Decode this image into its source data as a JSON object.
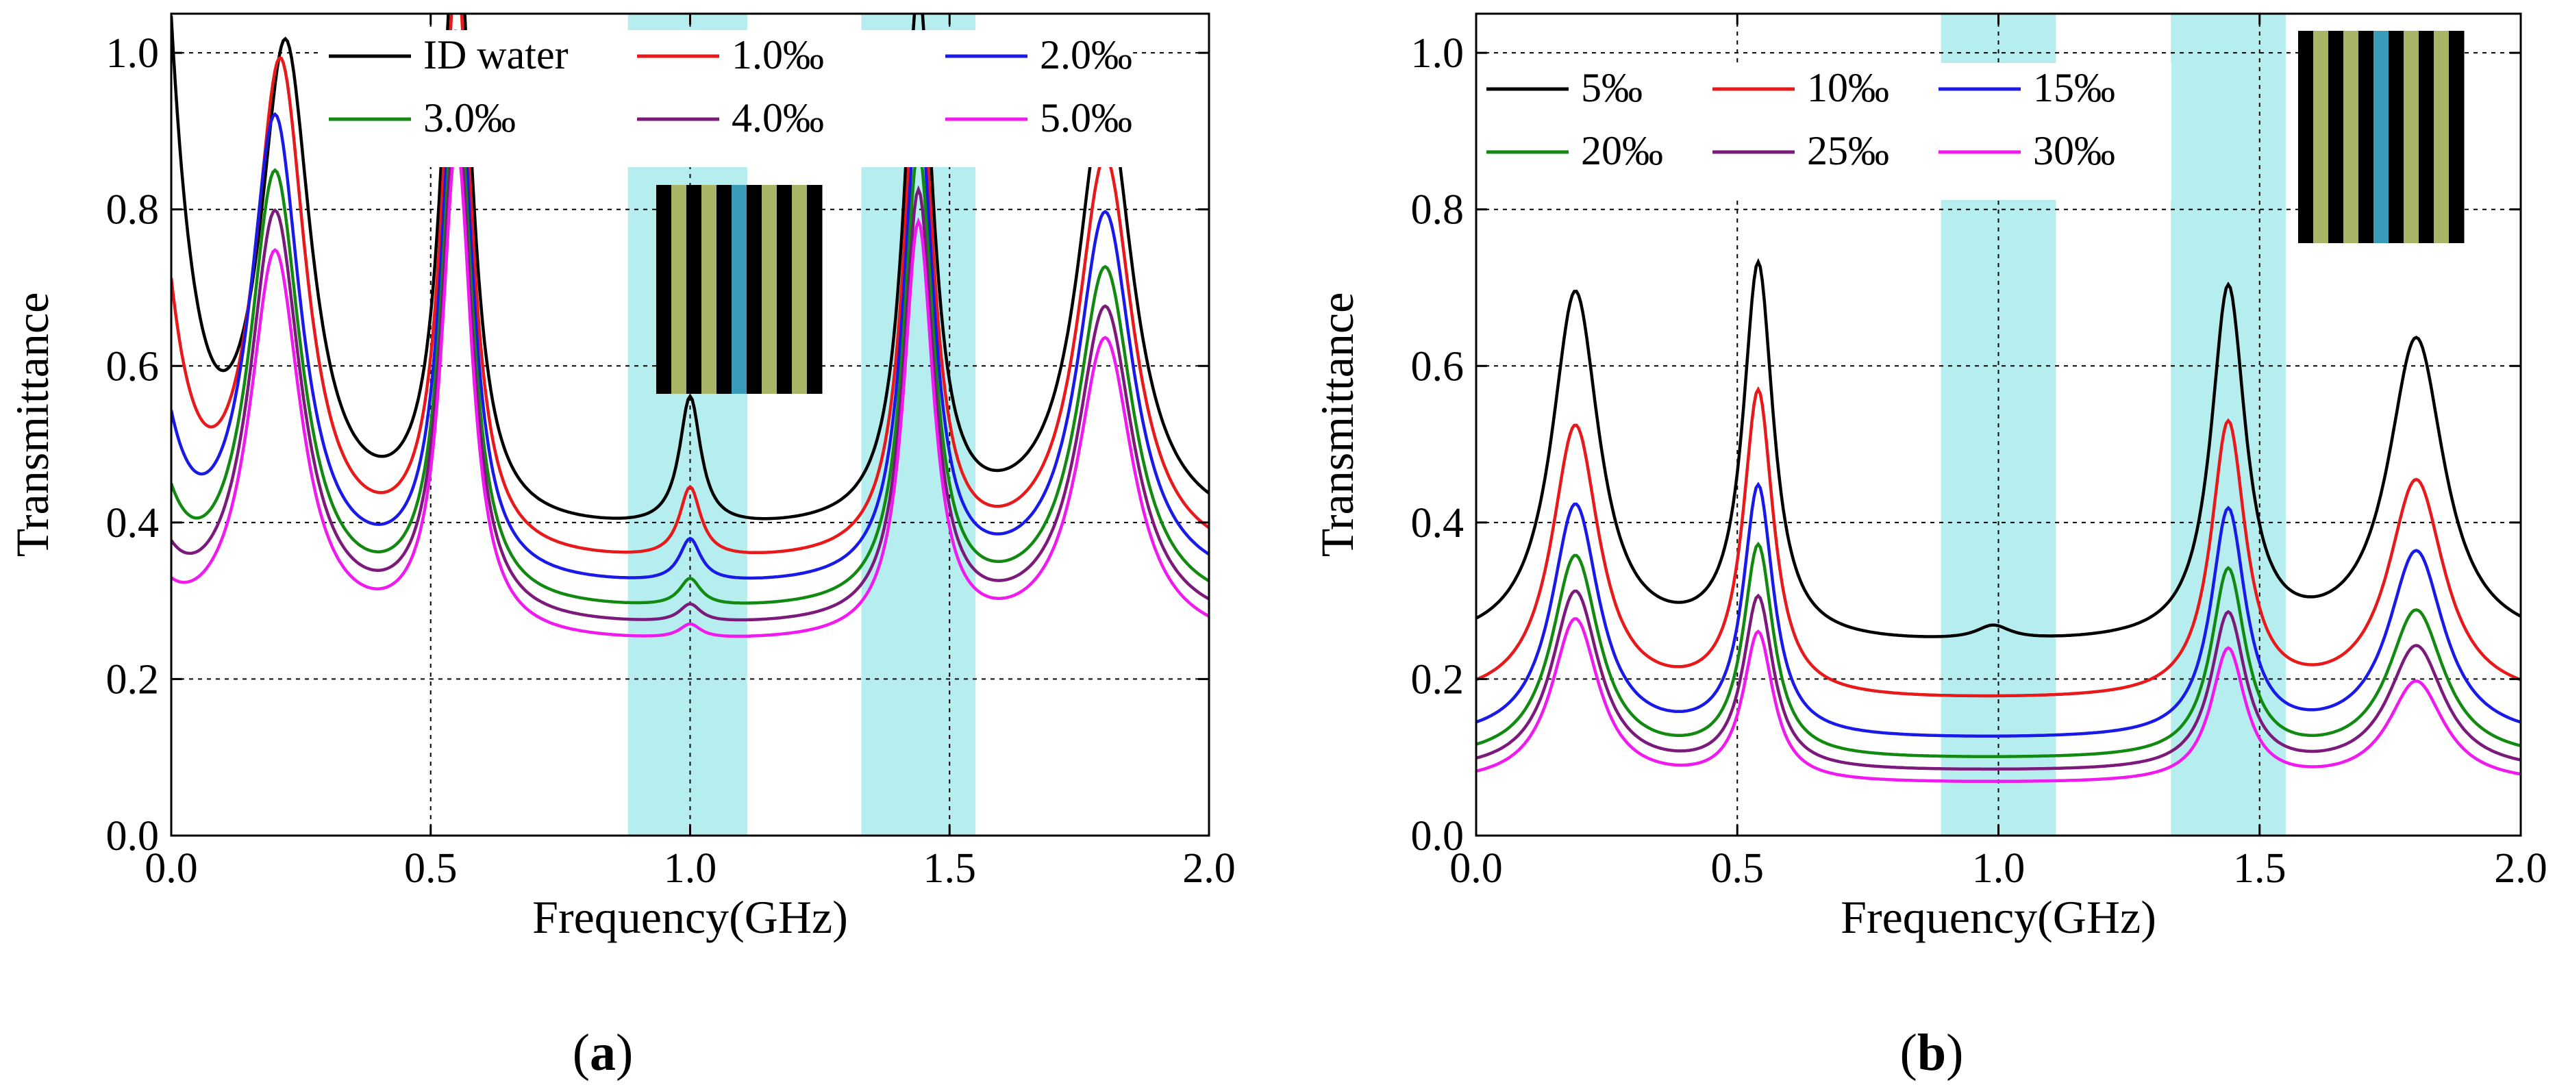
{
  "chart_data": [
    {
      "id": "a",
      "type": "line",
      "panel_label": "a",
      "caption_open": "(",
      "caption_close": ")",
      "xlabel": "Frequency(GHz)",
      "ylabel": "Transmittance",
      "xlim": [
        0,
        2.0
      ],
      "ylim": [
        0,
        1.05
      ],
      "xticks": [
        0.0,
        0.5,
        1.0,
        1.5,
        2.0
      ],
      "xtick_labels": [
        "0.0",
        "0.5",
        "1.0",
        "1.5",
        "2.0"
      ],
      "yticks": [
        0.0,
        0.2,
        0.4,
        0.6,
        0.8,
        1.0
      ],
      "ytick_labels": [
        "0.0",
        "0.2",
        "0.4",
        "0.6",
        "0.8",
        "1.0"
      ],
      "grid": true,
      "legend_position": "top",
      "highlight_bands": [
        [
          0.88,
          1.11
        ],
        [
          1.33,
          1.55
        ]
      ],
      "inset": {
        "position": "upper-middle",
        "stripes": [
          "#000000",
          "#a8b466",
          "#000000",
          "#a8b466",
          "#000000",
          "#3a9bb8",
          "#000000",
          "#a8b466",
          "#000000",
          "#a8b466",
          "#000000"
        ]
      },
      "series": [
        {
          "name": "ID water",
          "color": "#000000",
          "base": 0.38,
          "start": 1.0,
          "start_w": 0.05,
          "peaks": [
            [
              0.22,
              0.62,
              0.06
            ],
            [
              0.55,
              0.78,
              0.035
            ],
            [
              1.0,
              0.165,
              0.025
            ],
            [
              1.44,
              0.68,
              0.035
            ],
            [
              1.8,
              0.56,
              0.065
            ]
          ]
        },
        {
          "name": "1.0‰",
          "color": "#e8191a",
          "base": 0.34,
          "start": 0.66,
          "start_w": 0.05,
          "peaks": [
            [
              0.21,
              0.64,
              0.06
            ],
            [
              0.55,
              0.74,
              0.035
            ],
            [
              1.0,
              0.09,
              0.025
            ],
            [
              1.44,
              0.64,
              0.035
            ],
            [
              1.8,
              0.52,
              0.065
            ]
          ]
        },
        {
          "name": "2.0‰",
          "color": "#1a1ae8",
          "base": 0.31,
          "start": 0.49,
          "start_w": 0.05,
          "peaks": [
            [
              0.2,
              0.6,
              0.06
            ],
            [
              0.55,
              0.7,
              0.035
            ],
            [
              1.0,
              0.055,
              0.025
            ],
            [
              1.44,
              0.61,
              0.035
            ],
            [
              1.8,
              0.48,
              0.065
            ]
          ]
        },
        {
          "name": "3.0‰",
          "color": "#128a12",
          "base": 0.28,
          "start": 0.4,
          "start_w": 0.05,
          "peaks": [
            [
              0.2,
              0.56,
              0.06
            ],
            [
              0.55,
              0.67,
              0.035
            ],
            [
              1.0,
              0.035,
              0.025
            ],
            [
              1.44,
              0.58,
              0.035
            ],
            [
              1.8,
              0.44,
              0.065
            ]
          ]
        },
        {
          "name": "4.0‰",
          "color": "#7b1a7b",
          "base": 0.26,
          "start": 0.33,
          "start_w": 0.05,
          "peaks": [
            [
              0.2,
              0.53,
              0.06
            ],
            [
              0.55,
              0.65,
              0.035
            ],
            [
              1.0,
              0.023,
              0.025
            ],
            [
              1.44,
              0.55,
              0.035
            ],
            [
              1.8,
              0.41,
              0.065
            ]
          ]
        },
        {
          "name": "5.0‰",
          "color": "#f01af0",
          "base": 0.24,
          "start": 0.285,
          "start_w": 0.05,
          "peaks": [
            [
              0.2,
              0.5,
              0.06
            ],
            [
              0.55,
              0.63,
              0.035
            ],
            [
              1.0,
              0.018,
              0.025
            ],
            [
              1.44,
              0.53,
              0.035
            ],
            [
              1.8,
              0.39,
              0.065
            ]
          ]
        }
      ]
    },
    {
      "id": "b",
      "type": "line",
      "panel_label": "b",
      "caption_open": "(",
      "caption_close": ")",
      "xlabel": "Frequency(GHz)",
      "ylabel": "Transmittance",
      "xlim": [
        0,
        2.0
      ],
      "ylim": [
        0,
        1.05
      ],
      "xticks": [
        0.0,
        0.5,
        1.0,
        1.5,
        2.0
      ],
      "xtick_labels": [
        "0.0",
        "0.5",
        "1.0",
        "1.5",
        "2.0"
      ],
      "yticks": [
        0.0,
        0.2,
        0.4,
        0.6,
        0.8,
        1.0
      ],
      "ytick_labels": [
        "0.0",
        "0.2",
        "0.4",
        "0.6",
        "0.8",
        "1.0"
      ],
      "grid": true,
      "legend_position": "top-left",
      "highlight_bands": [
        [
          0.89,
          1.11
        ],
        [
          1.33,
          1.55
        ]
      ],
      "inset": {
        "position": "top-right",
        "stripes": [
          "#000000",
          "#a8b466",
          "#000000",
          "#a8b466",
          "#000000",
          "#3a9bb8",
          "#000000",
          "#a8b466",
          "#000000",
          "#a8b466",
          "#000000"
        ]
      },
      "series": [
        {
          "name": "5‰",
          "color": "#000000",
          "base": 0.24,
          "start": 0.285,
          "start_w": 0.0,
          "peaks": [
            [
              0.19,
              0.45,
              0.055
            ],
            [
              0.54,
              0.48,
              0.035
            ],
            [
              0.99,
              0.018,
              0.04
            ],
            [
              1.44,
              0.45,
              0.04
            ],
            [
              1.8,
              0.39,
              0.065
            ]
          ]
        },
        {
          "name": "10‰",
          "color": "#e8191a",
          "base": 0.17,
          "start": 0.17,
          "start_w": 0.0,
          "peaks": [
            [
              0.19,
              0.35,
              0.055
            ],
            [
              0.54,
              0.39,
              0.035
            ],
            [
              1.44,
              0.35,
              0.04
            ],
            [
              1.8,
              0.28,
              0.065
            ]
          ]
        },
        {
          "name": "15‰",
          "color": "#1a1ae8",
          "base": 0.12,
          "start": 0.12,
          "start_w": 0.0,
          "peaks": [
            [
              0.19,
              0.3,
              0.055
            ],
            [
              0.54,
              0.32,
              0.035
            ],
            [
              1.44,
              0.29,
              0.04
            ],
            [
              1.8,
              0.24,
              0.065
            ]
          ]
        },
        {
          "name": "20‰",
          "color": "#128a12",
          "base": 0.095,
          "start": 0.095,
          "start_w": 0.0,
          "peaks": [
            [
              0.19,
              0.26,
              0.055
            ],
            [
              0.54,
              0.27,
              0.035
            ],
            [
              1.44,
              0.24,
              0.04
            ],
            [
              1.8,
              0.19,
              0.065
            ]
          ]
        },
        {
          "name": "25‰",
          "color": "#7b1a7b",
          "base": 0.08,
          "start": 0.08,
          "start_w": 0.0,
          "peaks": [
            [
              0.19,
              0.23,
              0.055
            ],
            [
              0.54,
              0.22,
              0.035
            ],
            [
              1.44,
              0.2,
              0.04
            ],
            [
              1.8,
              0.16,
              0.065
            ]
          ]
        },
        {
          "name": "30‰",
          "color": "#f01af0",
          "base": 0.065,
          "start": 0.065,
          "start_w": 0.0,
          "peaks": [
            [
              0.19,
              0.21,
              0.055
            ],
            [
              0.54,
              0.19,
              0.035
            ],
            [
              1.44,
              0.17,
              0.04
            ],
            [
              1.8,
              0.13,
              0.065
            ]
          ]
        }
      ]
    }
  ],
  "colors": {
    "band": "#b6eef0",
    "grid": "#000000",
    "axis": "#000000"
  }
}
